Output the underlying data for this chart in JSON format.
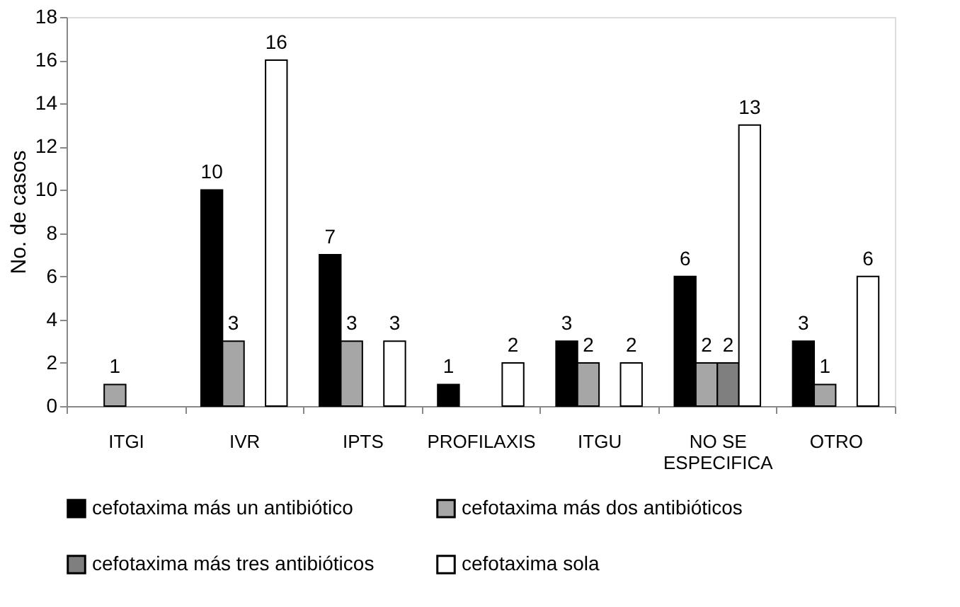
{
  "chart_data": {
    "type": "bar",
    "ylabel": "No. de casos",
    "categories": [
      "ITGI",
      "IVR",
      "IPTS",
      "PROFILAXIS",
      "ITGU",
      "NO SE ESPECIFICA",
      "OTRO"
    ],
    "series": [
      {
        "name": "cefotaxima más un antibiótico",
        "color": "#000000",
        "values": [
          null,
          10,
          7,
          1,
          3,
          6,
          3
        ]
      },
      {
        "name": "cefotaxima más dos antibióticos",
        "color": "#a6a6a6",
        "values": [
          1,
          3,
          3,
          null,
          2,
          2,
          1
        ]
      },
      {
        "name": "cefotaxima más tres antibióticos",
        "color": "#7f7f7f",
        "values": [
          null,
          null,
          null,
          null,
          null,
          2,
          null
        ]
      },
      {
        "name": "cefotaxima sola",
        "color": "#ffffff",
        "values": [
          null,
          16,
          3,
          2,
          2,
          13,
          6
        ]
      }
    ],
    "ylim": [
      0,
      18
    ],
    "yticks": [
      0,
      2,
      4,
      6,
      8,
      10,
      12,
      14,
      16,
      18
    ],
    "grid": false,
    "legend": "bottom",
    "data_labels": true
  }
}
